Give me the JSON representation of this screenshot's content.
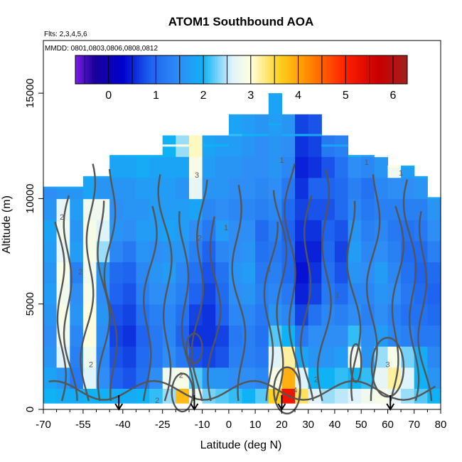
{
  "chart_data": {
    "type": "heatmap",
    "title": "ATOM1 Southbound AOA",
    "subtitle_flights": "Flts: 2,3,4,5,6",
    "subtitle_dates": "MMDD: 0801,0803,0806,0808,0812",
    "xlabel": "Latitude (deg N)",
    "ylabel": "Altitude (m)",
    "xlim": [
      -70,
      80
    ],
    "ylim": [
      0,
      17500
    ],
    "x_ticks": [
      -70,
      -55,
      -40,
      -25,
      -10,
      0,
      10,
      20,
      30,
      40,
      50,
      60,
      70,
      80
    ],
    "x_tick_labels": [
      "-70",
      "-55",
      "-40",
      "-25",
      "-10",
      "0",
      "10",
      "20",
      "30",
      "40",
      "50",
      "60",
      "70",
      "80"
    ],
    "y_ticks": [
      0,
      5000,
      10000,
      15000
    ],
    "y_tick_labels": [
      "0",
      "5000",
      "10000",
      "15000"
    ],
    "colorbar": {
      "range": [
        -0.7,
        6.3
      ],
      "ticks": [
        0,
        1,
        2,
        3,
        4,
        5,
        6
      ],
      "tick_labels": [
        "0",
        "1",
        "2",
        "3",
        "4",
        "5",
        "6"
      ],
      "position": "top",
      "colors": [
        "#7a1ee6",
        "#1a0099",
        "#0000cd",
        "#1e64f0",
        "#2e8ef5",
        "#0fb2f5",
        "#dff3fb",
        "#ffffe0",
        "#ffd21e",
        "#ff8c00",
        "#ff1e00",
        "#c80000",
        "#a52020"
      ]
    },
    "flight_marker_latitudes": [
      -41.5,
      -13,
      20,
      61
    ],
    "contour_labels": [
      {
        "value": "1",
        "lat": -15,
        "alt": 2900
      },
      {
        "value": "1",
        "lat": -1,
        "alt": 8500
      },
      {
        "value": "1",
        "lat": 41,
        "alt": 5300
      },
      {
        "value": "1",
        "lat": 52,
        "alt": 11600
      },
      {
        "value": "1",
        "lat": 65,
        "alt": 11100
      },
      {
        "value": "1",
        "lat": 20,
        "alt": 11700
      },
      {
        "value": "2",
        "lat": -63,
        "alt": 9000
      },
      {
        "value": "2",
        "lat": -56,
        "alt": 6400
      },
      {
        "value": "2",
        "lat": -52,
        "alt": 2000
      },
      {
        "value": "2",
        "lat": -27,
        "alt": 300
      },
      {
        "value": "2",
        "lat": -11,
        "alt": 8000
      },
      {
        "value": "2",
        "lat": -18,
        "alt": 1500
      },
      {
        "value": "2",
        "lat": 33,
        "alt": 1300
      },
      {
        "value": "3",
        "lat": -12,
        "alt": 11000
      },
      {
        "value": "3",
        "lat": 60,
        "alt": 2000
      },
      {
        "value": "3",
        "lat": 15,
        "alt": 6500
      },
      {
        "value": "4",
        "lat": 25,
        "alt": 800
      }
    ],
    "columns": [
      {
        "lat": -67.5,
        "top": 10500,
        "values": [
          2.0,
          1.8,
          1.6,
          1.5,
          1.6,
          1.7,
          1.6,
          1.7,
          1.8,
          1.6,
          1.5
        ]
      },
      {
        "lat": -62.5,
        "top": 10500,
        "values": [
          1.9,
          1.6,
          2.6,
          2.8,
          2.9,
          2.8,
          2.9,
          2.7,
          2.8,
          2.7,
          1.6
        ]
      },
      {
        "lat": -57.5,
        "top": 10500,
        "values": [
          1.9,
          1.2,
          1.3,
          1.4,
          1.6,
          1.5,
          1.3,
          1.7,
          1.6,
          1.7,
          1.6
        ]
      },
      {
        "lat": -52.5,
        "top": 11000,
        "values": [
          2.0,
          2.6,
          2.8,
          3.0,
          3.0,
          2.9,
          2.8,
          2.9,
          2.9,
          2.8,
          1.8,
          1.7
        ]
      },
      {
        "lat": -47.5,
        "top": 11000,
        "values": [
          2.0,
          1.5,
          1.4,
          1.5,
          1.6,
          1.5,
          1.6,
          2.4,
          2.6,
          2.8,
          1.6,
          1.6
        ]
      },
      {
        "lat": -42.5,
        "top": 12000,
        "values": [
          1.9,
          0.9,
          0.8,
          0.7,
          0.8,
          0.9,
          1.0,
          1.4,
          1.6,
          1.5,
          1.6,
          1.8,
          1.7
        ]
      },
      {
        "lat": -37.5,
        "top": 12000,
        "values": [
          1.9,
          0.8,
          0.7,
          0.6,
          0.7,
          0.8,
          0.9,
          1.2,
          1.5,
          1.6,
          1.6,
          1.8,
          1.7
        ]
      },
      {
        "lat": -32.5,
        "top": 12000,
        "values": [
          2.0,
          1.1,
          1.0,
          0.9,
          1.1,
          1.3,
          1.4,
          1.6,
          1.7,
          1.6,
          1.7,
          1.9,
          1.8
        ]
      },
      {
        "lat": -27.5,
        "top": 12000,
        "values": [
          2.1,
          1.5,
          1.2,
          1.2,
          1.3,
          1.5,
          1.6,
          1.5,
          1.7,
          1.7,
          1.7,
          1.8,
          1.8
        ]
      },
      {
        "lat": -22.5,
        "top": 12500,
        "values": [
          2.4,
          2.8,
          1.5,
          1.4,
          1.4,
          1.5,
          1.7,
          1.6,
          1.8,
          1.7,
          1.7,
          1.8,
          2.0,
          2.6
        ]
      },
      {
        "lat": -17.5,
        "top": 12500,
        "values": [
          3.8,
          2.9,
          1.2,
          0.9,
          1.1,
          1.3,
          1.4,
          1.6,
          1.7,
          1.7,
          1.6,
          1.8,
          2.4,
          2.8
        ]
      },
      {
        "lat": -12.5,
        "top": 12500,
        "values": [
          2.8,
          2.2,
          0.8,
          0.6,
          0.7,
          0.9,
          1.1,
          1.3,
          1.5,
          1.8,
          2.7,
          2.9,
          3.1,
          2.9
        ]
      },
      {
        "lat": -7.5,
        "top": 12500,
        "values": [
          2.3,
          1.6,
          0.7,
          0.6,
          0.6,
          0.7,
          0.8,
          0.9,
          1.2,
          1.4,
          1.6,
          1.7,
          1.8,
          1.8
        ]
      },
      {
        "lat": -2.5,
        "top": 12500,
        "values": [
          2.2,
          1.6,
          0.8,
          0.7,
          0.9,
          1.0,
          1.1,
          1.4,
          1.7,
          1.5,
          1.6,
          1.6,
          1.7,
          1.8
        ]
      },
      {
        "lat": 2.5,
        "top": 13000,
        "values": [
          2.1,
          1.5,
          1.3,
          1.2,
          1.4,
          1.5,
          1.6,
          1.5,
          1.5,
          1.4,
          1.5,
          1.6,
          1.7,
          1.8,
          1.9
        ]
      },
      {
        "lat": 7.5,
        "top": 13000,
        "values": [
          2.0,
          1.5,
          1.3,
          1.3,
          1.4,
          1.6,
          1.7,
          1.6,
          1.5,
          1.4,
          1.5,
          1.5,
          1.6,
          1.7,
          1.8
        ]
      },
      {
        "lat": 12.5,
        "top": 13000,
        "values": [
          2.2,
          1.4,
          1.2,
          1.1,
          1.2,
          1.3,
          1.2,
          1.1,
          1.0,
          1.3,
          1.4,
          1.5,
          1.5,
          1.6,
          1.8
        ]
      },
      {
        "lat": 17.5,
        "top": 13500,
        "values": [
          3.6,
          2.9,
          2.6,
          2.2,
          1.6,
          1.4,
          1.3,
          1.2,
          1.3,
          1.4,
          1.5,
          1.6,
          1.6,
          1.7,
          1.8,
          1.7
        ]
      },
      {
        "lat": 22.5,
        "top": 13000,
        "values": [
          5.2,
          3.9,
          3.2,
          2.0,
          1.4,
          1.2,
          1.0,
          1.0,
          0.9,
          1.0,
          1.2,
          1.4,
          1.5,
          1.6,
          1.7
        ]
      },
      {
        "lat": 27.5,
        "top": 13000,
        "values": [
          3.4,
          2.6,
          1.8,
          1.2,
          0.7,
          0.5,
          0.4,
          0.5,
          0.6,
          0.7,
          0.6,
          0.5,
          0.6,
          0.7,
          1.8
        ]
      },
      {
        "lat": 32.5,
        "top": 13000,
        "values": [
          2.6,
          2.0,
          1.6,
          1.5,
          1.1,
          0.7,
          0.6,
          0.5,
          0.6,
          0.8,
          0.9,
          0.6,
          0.7,
          0.8,
          1.6
        ]
      },
      {
        "lat": 37.5,
        "top": 12500,
        "values": [
          2.4,
          2.0,
          1.6,
          1.5,
          1.4,
          1.2,
          1.1,
          1.0,
          0.9,
          0.8,
          0.9,
          0.8,
          1.2,
          1.6
        ]
      },
      {
        "lat": 42.5,
        "top": 12500,
        "values": [
          2.5,
          2.1,
          1.7,
          1.5,
          1.3,
          1.0,
          0.8,
          0.7,
          0.8,
          1.0,
          1.0,
          1.1,
          1.3,
          1.6
        ]
      },
      {
        "lat": 47.5,
        "top": 12000,
        "values": [
          2.6,
          2.0,
          2.8,
          2.1,
          1.5,
          1.4,
          1.6,
          1.7,
          1.6,
          1.4,
          1.3,
          1.5,
          1.7
        ]
      },
      {
        "lat": 52.5,
        "top": 12000,
        "values": [
          2.8,
          2.1,
          1.6,
          1.5,
          1.3,
          1.4,
          1.5,
          1.4,
          1.3,
          1.2,
          1.1,
          1.4,
          1.5
        ]
      },
      {
        "lat": 57.5,
        "top": 12000,
        "values": [
          2.9,
          2.7,
          2.4,
          1.7,
          1.5,
          1.6,
          1.7,
          1.5,
          1.4,
          1.3,
          1.4,
          1.6,
          2.6
        ]
      },
      {
        "lat": 62.5,
        "top": 11500,
        "values": [
          2.7,
          3.2,
          2.9,
          1.4,
          1.3,
          1.5,
          1.4,
          1.3,
          1.2,
          1.3,
          1.5,
          2.8
        ]
      },
      {
        "lat": 67.5,
        "top": 11500,
        "values": [
          2.4,
          2.6,
          2.3,
          1.3,
          1.1,
          1.2,
          1.1,
          1.0,
          1.1,
          1.3,
          1.5,
          1.7
        ]
      },
      {
        "lat": 72.5,
        "top": 11000,
        "values": [
          2.2,
          2.0,
          1.9,
          1.2,
          1.1,
          1.0,
          0.9,
          1.0,
          1.2,
          1.3,
          1.6
        ]
      },
      {
        "lat": 77.5,
        "top": 10000,
        "values": [
          2.0,
          1.6,
          1.4,
          1.2,
          1.0,
          0.9,
          1.0,
          1.3,
          1.5,
          1.6
        ]
      }
    ]
  }
}
